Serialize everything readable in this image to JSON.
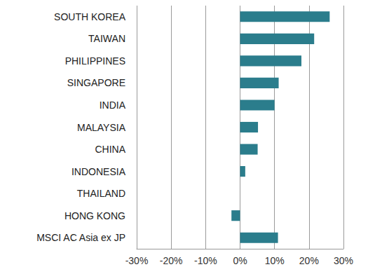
{
  "chart_data": {
    "type": "bar",
    "orientation": "horizontal",
    "categories": [
      "SOUTH KOREA",
      "TAIWAN",
      "PHILIPPINES",
      "SINGAPORE",
      "INDIA",
      "MALAYSIA",
      "CHINA",
      "INDONESIA",
      "THAILAND",
      "HONG KONG",
      "MSCI AC Asia ex JP"
    ],
    "values": [
      26,
      21.5,
      17.8,
      11.2,
      10,
      5.2,
      5.1,
      1.5,
      0,
      -2.5,
      11
    ],
    "color": "#2b7d8c",
    "xlim": [
      -30,
      30
    ],
    "xticks": [
      {
        "value": -30,
        "label": "-30%"
      },
      {
        "value": -20,
        "label": "-20%"
      },
      {
        "value": -10,
        "label": "-10%"
      },
      {
        "value": 0,
        "label": "0%"
      },
      {
        "value": 10,
        "label": "10%"
      },
      {
        "value": 20,
        "label": "20%"
      },
      {
        "value": 30,
        "label": "30%"
      }
    ],
    "grid": true
  }
}
